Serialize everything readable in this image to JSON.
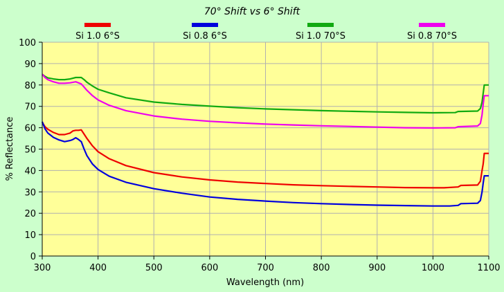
{
  "colors": {
    "background": "#ccffcc",
    "plot_area": "#ffff99",
    "grid": "#b0b0b0",
    "axis": "#000000"
  },
  "chart_data": {
    "type": "line",
    "title": "70° Shift vs 6° Shift",
    "xlabel": "Wavelength (nm)",
    "ylabel": "% Reflectance",
    "xlim": [
      300,
      1100
    ],
    "ylim": [
      0,
      100
    ],
    "xticks": [
      300,
      400,
      500,
      600,
      700,
      800,
      900,
      1000,
      1100
    ],
    "yticks": [
      0,
      10,
      20,
      30,
      40,
      50,
      60,
      70,
      80,
      90,
      100
    ],
    "grid": true,
    "legend_position": "top",
    "series": [
      {
        "name": "Si 1.0 6°S",
        "color": "#ee0000",
        "x": [
          300,
          305,
          310,
          320,
          330,
          340,
          350,
          355,
          360,
          365,
          370,
          375,
          380,
          390,
          400,
          420,
          450,
          500,
          550,
          600,
          650,
          700,
          750,
          800,
          850,
          900,
          950,
          1000,
          1020,
          1045,
          1050,
          1080,
          1085,
          1088,
          1090,
          1092,
          1100
        ],
        "y": [
          62.5,
          60.5,
          59.3,
          57.8,
          56.8,
          56.8,
          57.5,
          58.5,
          58.8,
          58.8,
          59.0,
          57.0,
          55.0,
          51.5,
          48.8,
          45.5,
          42.3,
          39.0,
          37.0,
          35.6,
          34.6,
          33.9,
          33.3,
          32.9,
          32.6,
          32.3,
          32.0,
          31.9,
          31.9,
          32.3,
          33.0,
          33.2,
          35.0,
          40.0,
          43.0,
          48.0,
          48.0
        ]
      },
      {
        "name": "Si 0.8 6°S",
        "color": "#0000dd",
        "x": [
          300,
          305,
          310,
          320,
          330,
          340,
          350,
          355,
          360,
          365,
          370,
          375,
          380,
          390,
          400,
          420,
          450,
          500,
          550,
          600,
          650,
          700,
          750,
          800,
          850,
          900,
          950,
          1000,
          1030,
          1045,
          1050,
          1080,
          1085,
          1088,
          1090,
          1092,
          1100
        ],
        "y": [
          62.8,
          59.5,
          57.5,
          55.5,
          54.3,
          53.5,
          54.0,
          54.5,
          55.3,
          54.5,
          53.5,
          50.0,
          47.0,
          43.0,
          40.5,
          37.3,
          34.5,
          31.5,
          29.4,
          27.6,
          26.5,
          25.7,
          25.0,
          24.5,
          24.1,
          23.8,
          23.6,
          23.4,
          23.4,
          23.7,
          24.5,
          24.7,
          26.0,
          30.0,
          34.0,
          37.5,
          37.5
        ]
      },
      {
        "name": "Si 1.0 70°S",
        "color": "#11aa11",
        "x": [
          300,
          305,
          310,
          320,
          330,
          340,
          350,
          360,
          370,
          375,
          380,
          390,
          400,
          420,
          450,
          500,
          550,
          600,
          650,
          700,
          750,
          800,
          850,
          900,
          950,
          1000,
          1040,
          1045,
          1080,
          1085,
          1088,
          1090,
          1092,
          1100
        ],
        "y": [
          85.0,
          84.0,
          83.3,
          82.8,
          82.5,
          82.5,
          82.8,
          83.5,
          83.5,
          82.5,
          81.3,
          79.5,
          78.0,
          76.3,
          74.0,
          72.0,
          70.9,
          70.1,
          69.4,
          68.8,
          68.4,
          68.0,
          67.7,
          67.4,
          67.2,
          67.0,
          67.1,
          67.6,
          67.8,
          69.0,
          72.0,
          76.0,
          80.0,
          80.0
        ]
      },
      {
        "name": "Si 0.8 70°S",
        "color": "#ee00ee",
        "x": [
          300,
          305,
          310,
          320,
          330,
          340,
          350,
          360,
          370,
          375,
          380,
          390,
          400,
          420,
          450,
          500,
          550,
          600,
          650,
          700,
          750,
          800,
          850,
          900,
          950,
          1000,
          1040,
          1045,
          1080,
          1085,
          1088,
          1090,
          1092,
          1100
        ],
        "y": [
          85.0,
          83.5,
          82.5,
          81.5,
          80.8,
          80.8,
          81.0,
          81.5,
          80.5,
          79.0,
          77.5,
          75.0,
          73.0,
          70.5,
          68.0,
          65.5,
          64.0,
          63.0,
          62.3,
          61.7,
          61.3,
          60.9,
          60.6,
          60.3,
          60.0,
          59.9,
          60.0,
          60.5,
          60.8,
          62.0,
          66.0,
          71.0,
          75.0,
          75.0
        ]
      }
    ]
  }
}
